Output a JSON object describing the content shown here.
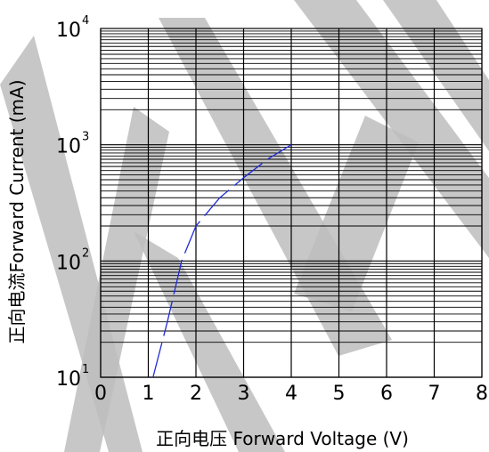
{
  "chart_data": {
    "type": "line",
    "xlabel": "正向电压 Forward Voltage (V)",
    "ylabel": "正向电流Forward Current (mA)",
    "xlim": [
      0,
      8
    ],
    "ylim": [
      10,
      10000
    ],
    "y_scale": "log",
    "x_ticks": [
      "0",
      "1",
      "2",
      "3",
      "4",
      "5",
      "6",
      "7",
      "8"
    ],
    "y_ticks": [
      {
        "base": "10",
        "exp": "1",
        "value": 10
      },
      {
        "base": "10",
        "exp": "2",
        "value": 100
      },
      {
        "base": "10",
        "exp": "3",
        "value": 1000
      },
      {
        "base": "10",
        "exp": "4",
        "value": 10000
      }
    ],
    "grid": true,
    "series": [
      {
        "color": "#1f2bd6",
        "style": "dashed",
        "x": [
          1.1,
          1.4,
          1.7,
          2.0,
          2.5,
          3.0,
          3.5,
          4.0
        ],
        "y": [
          10,
          30,
          100,
          200,
          350,
          520,
          750,
          1000
        ]
      }
    ]
  }
}
